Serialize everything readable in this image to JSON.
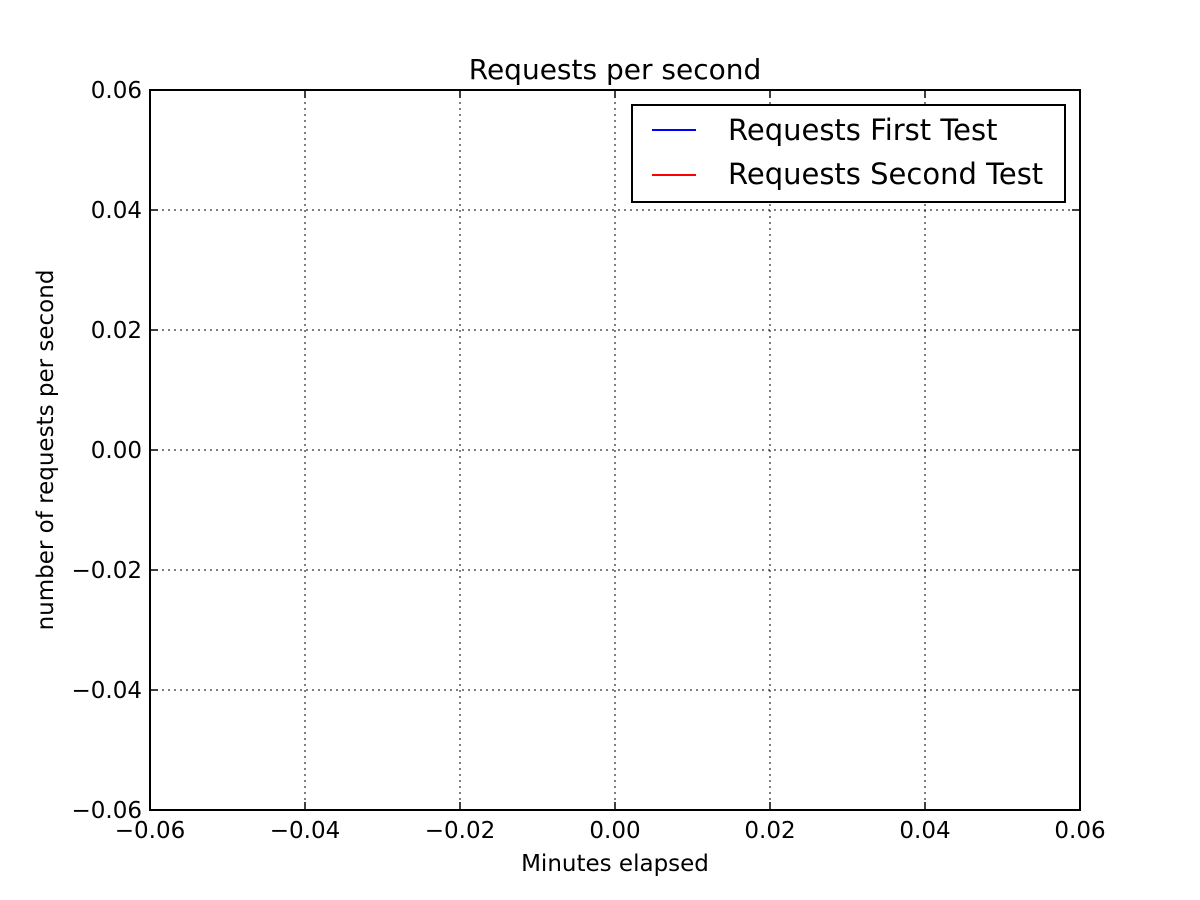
{
  "chart_data": {
    "type": "line",
    "title": "Requests per second",
    "xlabel": "Minutes elapsed",
    "ylabel": "number of requests per second",
    "xlim": [
      -0.06,
      0.06
    ],
    "ylim": [
      -0.06,
      0.06
    ],
    "x_ticks": [
      -0.06,
      -0.04,
      -0.02,
      0.0,
      0.02,
      0.04,
      0.06
    ],
    "y_ticks": [
      -0.06,
      -0.04,
      -0.02,
      0.0,
      0.02,
      0.04,
      0.06
    ],
    "x_tick_labels": [
      "−0.06",
      "−0.04",
      "−0.02",
      "0.00",
      "0.02",
      "0.04",
      "0.06"
    ],
    "y_tick_labels": [
      "−0.06",
      "−0.04",
      "−0.02",
      "0.00",
      "0.02",
      "0.04",
      "0.06"
    ],
    "grid": true,
    "legend_position": "top-right",
    "series": [
      {
        "name": "Requests First Test",
        "color": "#0000ff",
        "x": [],
        "y": []
      },
      {
        "name": "Requests Second Test",
        "color": "#ff0000",
        "x": [],
        "y": []
      }
    ]
  }
}
